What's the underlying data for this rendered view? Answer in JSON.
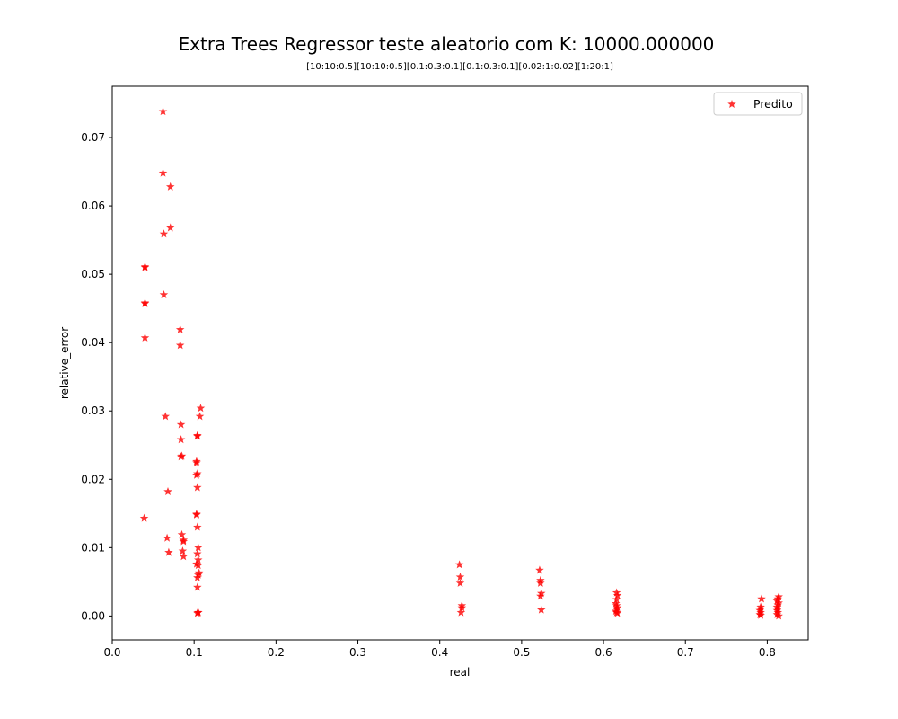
{
  "chart_data": {
    "type": "scatter",
    "title": "Extra Trees Regressor teste aleatorio com K: 10000.000000",
    "subtitle": "[10:10:0.5][10:10:0.5][0.1:0.3:0.1][0.1:0.3:0.1][0.02:1:0.02][1:20:1]",
    "xlabel": "real",
    "ylabel": "relative_error",
    "xlim": [
      0.0,
      0.85
    ],
    "ylim": [
      -0.0035,
      0.0775
    ],
    "xticks": [
      0.0,
      0.1,
      0.2,
      0.3,
      0.4,
      0.5,
      0.6,
      0.7,
      0.8
    ],
    "yticks": [
      0.0,
      0.01,
      0.02,
      0.03,
      0.04,
      0.05,
      0.06,
      0.07
    ],
    "xtick_labels": [
      "0.0",
      "0.1",
      "0.2",
      "0.3",
      "0.4",
      "0.5",
      "0.6",
      "0.7",
      "0.8"
    ],
    "ytick_labels": [
      "0.00",
      "0.01",
      "0.02",
      "0.03",
      "0.04",
      "0.05",
      "0.06",
      "0.07"
    ],
    "grid": false,
    "legend_position": "top-right",
    "series": [
      {
        "name": "Predito",
        "color": "#ff0000",
        "marker": "star",
        "x": [
          0.062,
          0.062,
          0.071,
          0.071,
          0.063,
          0.04,
          0.04,
          0.04,
          0.04,
          0.063,
          0.04,
          0.083,
          0.083,
          0.065,
          0.084,
          0.084,
          0.084,
          0.085,
          0.068,
          0.039,
          0.085,
          0.067,
          0.086,
          0.087,
          0.069,
          0.087,
          0.087,
          0.108,
          0.107,
          0.104,
          0.104,
          0.103,
          0.103,
          0.104,
          0.103,
          0.104,
          0.103,
          0.103,
          0.104,
          0.105,
          0.104,
          0.105,
          0.103,
          0.105,
          0.106,
          0.105,
          0.104,
          0.104,
          0.105,
          0.104,
          0.105,
          0.424,
          0.425,
          0.425,
          0.427,
          0.427,
          0.426,
          0.522,
          0.523,
          0.523,
          0.524,
          0.523,
          0.524,
          0.616,
          0.617,
          0.616,
          0.615,
          0.616,
          0.617,
          0.616,
          0.615,
          0.616,
          0.617,
          0.793,
          0.792,
          0.792,
          0.791,
          0.792,
          0.791,
          0.792,
          0.814,
          0.813,
          0.812,
          0.814,
          0.813,
          0.812,
          0.813,
          0.812,
          0.813,
          0.812,
          0.814
        ],
        "y": [
          0.0738,
          0.0648,
          0.0628,
          0.0568,
          0.0559,
          0.051,
          0.0511,
          0.0458,
          0.0457,
          0.047,
          0.0407,
          0.0419,
          0.0396,
          0.0292,
          0.028,
          0.0258,
          0.0233,
          0.0234,
          0.0182,
          0.0143,
          0.0119,
          0.0114,
          0.0095,
          0.0109,
          0.0093,
          0.0111,
          0.0087,
          0.0304,
          0.0292,
          0.0264,
          0.0263,
          0.0226,
          0.0224,
          0.0208,
          0.0206,
          0.0188,
          0.0149,
          0.0148,
          0.013,
          0.01,
          0.0091,
          0.0082,
          0.0076,
          0.0074,
          0.0063,
          0.006,
          0.0056,
          0.0042,
          0.0005,
          0.0004,
          0.0005,
          0.0075,
          0.0057,
          0.0048,
          0.0015,
          0.0012,
          0.0005,
          0.0067,
          0.0052,
          0.0048,
          0.0033,
          0.0029,
          0.0009,
          0.0034,
          0.003,
          0.0024,
          0.0018,
          0.0015,
          0.0012,
          0.001,
          0.0007,
          0.0005,
          0.0004,
          0.0025,
          0.0013,
          0.001,
          0.0008,
          0.0005,
          0.0002,
          0.0001,
          0.0028,
          0.0025,
          0.0022,
          0.0019,
          0.0016,
          0.0013,
          0.001,
          0.0008,
          0.0005,
          0.0002,
          0.0
        ]
      }
    ]
  }
}
